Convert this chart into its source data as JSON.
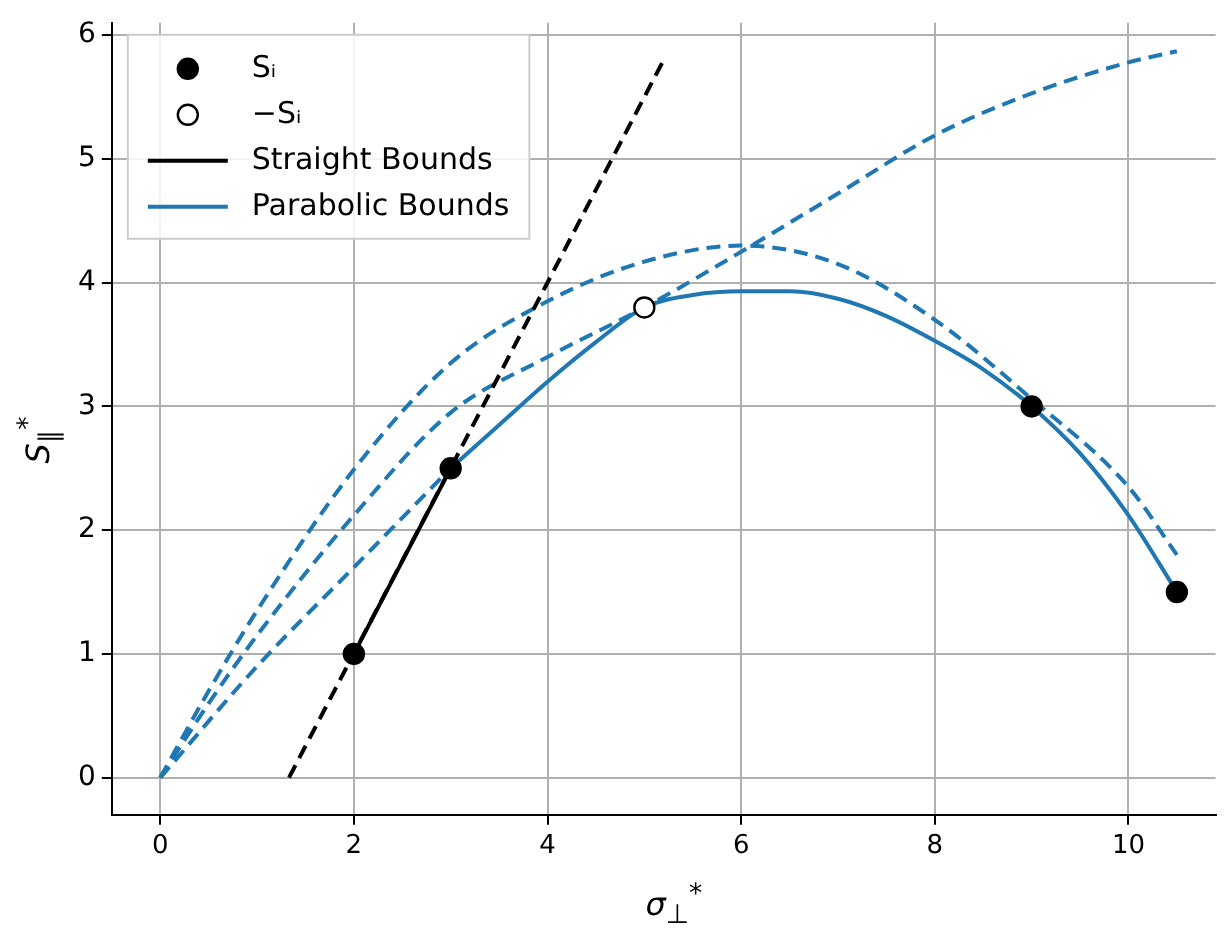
{
  "chart_data": {
    "type": "line",
    "xlabel": "σ$_{⊥}$$^{*}$",
    "ylabel": "S$_{∥}$$^{*}$",
    "xlim": [
      -0.5,
      10.9
    ],
    "ylim": [
      -0.3,
      6.1
    ],
    "xticks": [
      0,
      2,
      4,
      6,
      8,
      10
    ],
    "yticks": [
      0,
      1,
      2,
      3,
      4,
      5,
      6
    ],
    "grid": true,
    "legend": "top left",
    "series": [
      {
        "color": "#000000",
        "line_style": "dashed",
        "marker": "none",
        "x": [
          1.33,
          5.2
        ],
        "values": [
          0,
          5.8
        ]
      },
      {
        "color": "#1f77b4",
        "line_style": "dashed",
        "marker": "none",
        "x": [
          0,
          0.5,
          1,
          2,
          3,
          4,
          5,
          6,
          7,
          8,
          9,
          10,
          10.5
        ],
        "values": [
          0,
          0.7,
          1.35,
          2.49,
          3.35,
          3.85,
          4.17,
          4.3,
          4.15,
          3.7,
          3.06,
          2.35,
          1.8
        ]
      },
      {
        "color": "#1f77b4",
        "line_style": "dashed",
        "marker": "none",
        "x": [
          0,
          0.5,
          1,
          2,
          3,
          4,
          5,
          6,
          7,
          8,
          9,
          10,
          10.5
        ],
        "values": [
          0,
          0.6,
          1.15,
          2.12,
          2.95,
          3.4,
          3.8,
          4.25,
          4.72,
          5.19,
          5.53,
          5.78,
          5.87
        ]
      },
      {
        "color": "#1f77b4",
        "line_style": "dashed",
        "marker": "none",
        "x": [
          0,
          1,
          2,
          3
        ],
        "values": [
          0,
          0.9,
          1.7,
          2.5
        ]
      },
      {
        "name": "Straight Bounds",
        "color": "#000000",
        "line_style": "solid",
        "marker": "none",
        "x": [
          2,
          3
        ],
        "values": [
          1,
          2.5
        ]
      },
      {
        "name": "Parabolic Bounds",
        "color": "#1f77b4",
        "line_style": "solid",
        "marker": "none",
        "x": [
          3,
          3.5,
          4,
          4.5,
          5,
          5.5,
          6,
          6.5,
          7,
          7.5,
          8,
          8.5,
          9,
          9.5,
          10,
          10.5
        ],
        "values": [
          2.5,
          2.85,
          3.2,
          3.52,
          3.8,
          3.9,
          3.93,
          3.93,
          3.87,
          3.73,
          3.53,
          3.3,
          3.0,
          2.62,
          2.12,
          1.5
        ]
      },
      {
        "type": "scatter",
        "name": "Sᵢ",
        "color": "#000000",
        "marker": "circle",
        "x": [
          2,
          3,
          9,
          10.5
        ],
        "values": [
          1,
          2.5,
          3,
          1.5
        ]
      },
      {
        "type": "scatter",
        "name": "−Sᵢ",
        "color": "#ffffff",
        "marker": "circle",
        "x": [
          5
        ],
        "values": [
          3.8
        ]
      }
    ]
  }
}
